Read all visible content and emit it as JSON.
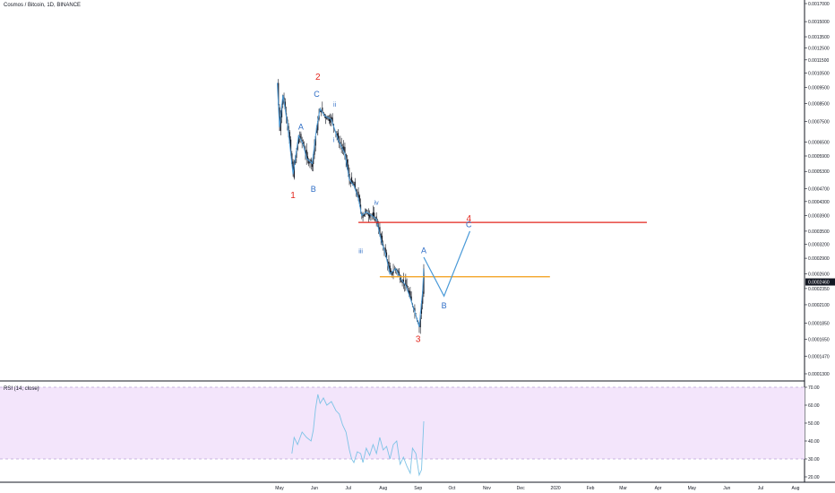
{
  "header": {
    "title": "Cosmos / Bitcoin, 1D, BINANCE"
  },
  "rsi_panel": {
    "label": "RSI (14, close)"
  },
  "price_badge": "0.0002460",
  "colors": {
    "candle": "#131722",
    "wave_line": "#4a9ad8",
    "resistance": "#e3241b",
    "support": "#f39c12",
    "rsi_band_fill": "#f3e5fb",
    "rsi_line": "#7ec3e6",
    "annotation_red": "#e3241b",
    "annotation_blue": "#2e6dc6"
  },
  "chart_data": [
    {
      "type": "candlestick",
      "title": "Cosmos / Bitcoin, 1D, BINANCE",
      "y_axis": {
        "scale": "log",
        "ticks": [
          "0.0017000",
          "0.0015000",
          "0.0013500",
          "0.0012500",
          "0.0011500",
          "0.0010500",
          "0.0009500",
          "0.0008500",
          "0.0007500",
          "0.0006500",
          "0.0005900",
          "0.0005300",
          "0.0004700",
          "0.0004300",
          "0.0003900",
          "0.0003500",
          "0.0003200",
          "0.0002900",
          "0.0002600",
          "0.0002350",
          "0.0002100",
          "0.0001850",
          "0.0001650",
          "0.0001470",
          "0.0001300"
        ]
      },
      "x_axis": {
        "ticks": [
          "May",
          "Jun",
          "Jul",
          "Aug",
          "Sep",
          "Oct",
          "Nov",
          "Dec",
          "2020",
          "Feb",
          "Mar",
          "Apr",
          "May",
          "Jun",
          "Jul",
          "Aug"
        ]
      },
      "last_price": "0.0002460",
      "price_path": [
        [
          "2019-04-29",
          0.00098
        ],
        [
          "2019-05-01",
          0.00072
        ],
        [
          "2019-05-04",
          0.0009
        ],
        [
          "2019-05-08",
          0.00074
        ],
        [
          "2019-05-13",
          0.00052
        ],
        [
          "2019-05-18",
          0.00068
        ],
        [
          "2019-05-22",
          0.00064
        ],
        [
          "2019-05-25",
          0.00058
        ],
        [
          "2019-05-30",
          0.00056
        ],
        [
          "2019-06-03",
          0.00072
        ],
        [
          "2019-06-06",
          0.00082
        ],
        [
          "2019-06-10",
          0.00078
        ],
        [
          "2019-06-16",
          0.00076
        ],
        [
          "2019-06-22",
          0.00066
        ],
        [
          "2019-06-28",
          0.0006
        ],
        [
          "2019-07-02",
          0.0005
        ],
        [
          "2019-07-06",
          0.00048
        ],
        [
          "2019-07-10",
          0.00044
        ],
        [
          "2019-07-13",
          0.00039
        ],
        [
          "2019-07-17",
          0.0004
        ],
        [
          "2019-07-22",
          0.00039
        ],
        [
          "2019-07-26",
          0.00038
        ],
        [
          "2019-07-30",
          0.00033
        ],
        [
          "2019-08-03",
          0.0003
        ],
        [
          "2019-08-07",
          0.00026
        ],
        [
          "2019-08-12",
          0.00027
        ],
        [
          "2019-08-17",
          0.00025
        ],
        [
          "2019-08-21",
          0.00024
        ],
        [
          "2019-08-25",
          0.00022
        ],
        [
          "2019-08-29",
          0.0002
        ],
        [
          "2019-09-02",
          0.00018
        ],
        [
          "2019-09-05",
          0.00023
        ],
        [
          "2019-09-06",
          0.00027
        ]
      ],
      "levels": [
        {
          "name": "resistance",
          "value": 0.000372,
          "from": "2019-07-10",
          "to": "2020-03-22"
        },
        {
          "name": "support",
          "value": 0.000255,
          "from": "2019-07-29",
          "to": "2019-12-27"
        }
      ],
      "projection": [
        [
          "2019-09-06",
          0.000292
        ],
        [
          "2019-09-24",
          0.000223
        ],
        [
          "2019-10-17",
          0.00035
        ]
      ],
      "annotations": [
        {
          "text": "1",
          "color": "red",
          "x": "2019-05-13",
          "y": 0.00044
        },
        {
          "text": "2",
          "color": "red",
          "x": "2019-06-04",
          "y": 0.001
        },
        {
          "text": "3",
          "color": "red",
          "x": "2019-09-01",
          "y": 0.000162
        },
        {
          "text": "4",
          "color": "red",
          "x": "2019-10-16",
          "y": 0.000374
        },
        {
          "text": "A",
          "color": "blue",
          "x": "2019-05-20",
          "y": 0.00071
        },
        {
          "text": "B",
          "color": "blue",
          "x": "2019-05-31",
          "y": 0.00046
        },
        {
          "text": "C",
          "color": "blue",
          "x": "2019-06-03",
          "y": 0.00089
        },
        {
          "text": "ii",
          "color": "blue",
          "x": "2019-06-19",
          "y": 0.00083
        },
        {
          "text": "i",
          "color": "blue",
          "x": "2019-06-18",
          "y": 0.00065
        },
        {
          "text": "iv",
          "color": "blue",
          "x": "2019-07-26",
          "y": 0.00042
        },
        {
          "text": "iii",
          "color": "blue",
          "x": "2019-07-12",
          "y": 0.0003
        },
        {
          "text": "A",
          "color": "blue",
          "x": "2019-09-06",
          "y": 0.0003
        },
        {
          "text": "B",
          "color": "blue",
          "x": "2019-09-24",
          "y": 0.000205
        },
        {
          "text": "C",
          "color": "blue",
          "x": "2019-10-16",
          "y": 0.00036
        }
      ]
    },
    {
      "type": "line",
      "title": "RSI (14, close)",
      "y_axis": {
        "ticks": [
          "70.00",
          "60.00",
          "50.00",
          "40.00",
          "30.00",
          "20.00"
        ],
        "ylim": [
          17,
          73
        ]
      },
      "bands": {
        "upper": 70,
        "lower": 30
      },
      "series": [
        {
          "values": [
            [
              "2019-05-12",
              33
            ],
            [
              "2019-05-14",
              42
            ],
            [
              "2019-05-17",
              38
            ],
            [
              "2019-05-21",
              45
            ],
            [
              "2019-05-25",
              42
            ],
            [
              "2019-05-29",
              40
            ],
            [
              "2019-05-31",
              46
            ],
            [
              "2019-06-02",
              58
            ],
            [
              "2019-06-04",
              66
            ],
            [
              "2019-06-06",
              61
            ],
            [
              "2019-06-09",
              64
            ],
            [
              "2019-06-12",
              60
            ],
            [
              "2019-06-16",
              62
            ],
            [
              "2019-06-20",
              57
            ],
            [
              "2019-06-23",
              55
            ],
            [
              "2019-06-26",
              49
            ],
            [
              "2019-06-29",
              45
            ],
            [
              "2019-07-02",
              35
            ],
            [
              "2019-07-04",
              30
            ],
            [
              "2019-07-06",
              28
            ],
            [
              "2019-07-09",
              34
            ],
            [
              "2019-07-12",
              33
            ],
            [
              "2019-07-14",
              28
            ],
            [
              "2019-07-17",
              36
            ],
            [
              "2019-07-20",
              32
            ],
            [
              "2019-07-23",
              38
            ],
            [
              "2019-07-26",
              33
            ],
            [
              "2019-07-29",
              42
            ],
            [
              "2019-08-01",
              35
            ],
            [
              "2019-08-04",
              37
            ],
            [
              "2019-08-07",
              30
            ],
            [
              "2019-08-10",
              38
            ],
            [
              "2019-08-13",
              40
            ],
            [
              "2019-08-16",
              27
            ],
            [
              "2019-08-19",
              31
            ],
            [
              "2019-08-22",
              26
            ],
            [
              "2019-08-25",
              22
            ],
            [
              "2019-08-27",
              36
            ],
            [
              "2019-08-30",
              33
            ],
            [
              "2019-09-02",
              21
            ],
            [
              "2019-09-04",
              24
            ],
            [
              "2019-09-06",
              51
            ]
          ]
        }
      ]
    }
  ]
}
